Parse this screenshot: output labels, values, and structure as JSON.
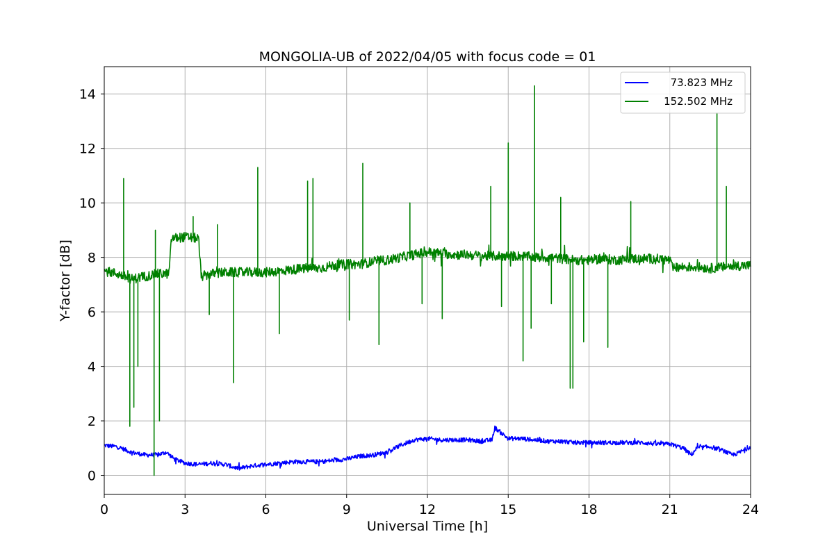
{
  "chart_data": {
    "type": "line",
    "title": "MONGOLIA-UB of 2022/04/05 with focus code = 01",
    "xlabel": "Universal Time [h]",
    "ylabel": "Y-factor [dB]",
    "xlim": [
      0,
      24
    ],
    "ylim": [
      -0.7,
      15.0
    ],
    "xticks": [
      0,
      3,
      6,
      9,
      12,
      15,
      18,
      21,
      24
    ],
    "xtick_labels": [
      "0",
      "3",
      "6",
      "9",
      "12",
      "15",
      "18",
      "21",
      "24"
    ],
    "yticks": [
      0,
      2,
      4,
      6,
      8,
      10,
      12,
      14
    ],
    "ytick_labels": [
      "0",
      "2",
      "4",
      "6",
      "8",
      "10",
      "12",
      "14"
    ],
    "grid": true,
    "legend_position": "upper right",
    "series": [
      {
        "name": "73.823 MHz",
        "color": "#0000ff",
        "x": [
          0,
          0.5,
          1,
          1.5,
          2,
          2.3,
          2.6,
          3,
          3.5,
          4,
          4.5,
          4.8,
          5,
          5.5,
          6,
          6.5,
          7,
          7.5,
          8,
          8.5,
          9,
          9.5,
          10,
          10.5,
          11,
          11.5,
          12,
          12.5,
          13,
          13.5,
          14,
          14.4,
          14.5,
          15,
          15.5,
          16,
          16.5,
          17,
          17.5,
          18,
          18.5,
          19,
          19.5,
          20,
          20.5,
          21,
          21.5,
          21.8,
          22,
          22.5,
          23,
          23.3,
          23.5,
          24
        ],
        "y": [
          1.1,
          1.05,
          0.85,
          0.75,
          0.75,
          0.85,
          0.6,
          0.45,
          0.4,
          0.45,
          0.4,
          0.3,
          0.25,
          0.35,
          0.4,
          0.45,
          0.5,
          0.5,
          0.5,
          0.55,
          0.6,
          0.7,
          0.75,
          0.85,
          1.1,
          1.3,
          1.35,
          1.3,
          1.3,
          1.3,
          1.25,
          1.3,
          1.75,
          1.35,
          1.35,
          1.3,
          1.25,
          1.25,
          1.2,
          1.2,
          1.2,
          1.2,
          1.2,
          1.2,
          1.15,
          1.15,
          1.0,
          0.75,
          1.0,
          1.05,
          0.9,
          0.75,
          0.8,
          1.05
        ],
        "noise": 0.08
      },
      {
        "name": "152.502 MHz",
        "color": "#008000",
        "x": [
          0,
          0.5,
          1,
          1.5,
          2,
          2.4,
          2.5,
          3,
          3.5,
          3.6,
          4,
          4.5,
          5,
          5.5,
          6,
          6.5,
          7,
          7.5,
          8,
          8.5,
          9,
          9.5,
          10,
          10.5,
          11,
          11.5,
          12,
          12.5,
          13,
          13.5,
          14,
          14.5,
          15,
          15.5,
          16,
          16.5,
          17,
          17.5,
          18,
          18.5,
          19,
          19.5,
          20,
          20.5,
          21,
          21.1,
          21.5,
          22,
          22.5,
          23,
          23.5,
          24
        ],
        "y": [
          7.5,
          7.4,
          7.2,
          7.3,
          7.4,
          7.4,
          8.7,
          8.75,
          8.7,
          7.3,
          7.4,
          7.45,
          7.45,
          7.45,
          7.45,
          7.5,
          7.55,
          7.6,
          7.6,
          7.7,
          7.75,
          7.75,
          7.85,
          7.9,
          8.0,
          8.1,
          8.2,
          8.15,
          8.1,
          8.1,
          8.05,
          8.05,
          8.05,
          8.05,
          8.0,
          8.0,
          7.95,
          7.9,
          7.9,
          7.95,
          7.9,
          7.95,
          7.95,
          7.95,
          7.9,
          7.6,
          7.65,
          7.65,
          7.6,
          7.65,
          7.7,
          7.7
        ],
        "noise": 0.18,
        "spikes": [
          {
            "x": 0.72,
            "y": 10.9
          },
          {
            "x": 0.95,
            "y": 1.8
          },
          {
            "x": 1.1,
            "y": 2.5
          },
          {
            "x": 1.25,
            "y": 4.0
          },
          {
            "x": 1.85,
            "y": 0.0
          },
          {
            "x": 1.9,
            "y": 9.0
          },
          {
            "x": 2.05,
            "y": 2.0
          },
          {
            "x": 3.3,
            "y": 9.5
          },
          {
            "x": 3.9,
            "y": 5.9
          },
          {
            "x": 4.2,
            "y": 9.2
          },
          {
            "x": 4.8,
            "y": 3.4
          },
          {
            "x": 5.7,
            "y": 11.3
          },
          {
            "x": 6.5,
            "y": 5.2
          },
          {
            "x": 7.55,
            "y": 10.8
          },
          {
            "x": 7.75,
            "y": 10.9
          },
          {
            "x": 9.1,
            "y": 5.7
          },
          {
            "x": 9.6,
            "y": 11.45
          },
          {
            "x": 10.2,
            "y": 4.8
          },
          {
            "x": 11.35,
            "y": 10.0
          },
          {
            "x": 11.8,
            "y": 6.3
          },
          {
            "x": 12.55,
            "y": 5.75
          },
          {
            "x": 14.35,
            "y": 10.6
          },
          {
            "x": 14.75,
            "y": 6.2
          },
          {
            "x": 15.0,
            "y": 12.2
          },
          {
            "x": 15.55,
            "y": 4.2
          },
          {
            "x": 15.85,
            "y": 5.4
          },
          {
            "x": 15.98,
            "y": 14.3
          },
          {
            "x": 16.6,
            "y": 6.3
          },
          {
            "x": 16.95,
            "y": 10.2
          },
          {
            "x": 17.3,
            "y": 3.2
          },
          {
            "x": 17.4,
            "y": 3.2
          },
          {
            "x": 17.8,
            "y": 4.9
          },
          {
            "x": 18.7,
            "y": 4.7
          },
          {
            "x": 19.55,
            "y": 10.05
          },
          {
            "x": 22.75,
            "y": 13.3
          },
          {
            "x": 23.1,
            "y": 10.6
          }
        ]
      }
    ]
  }
}
